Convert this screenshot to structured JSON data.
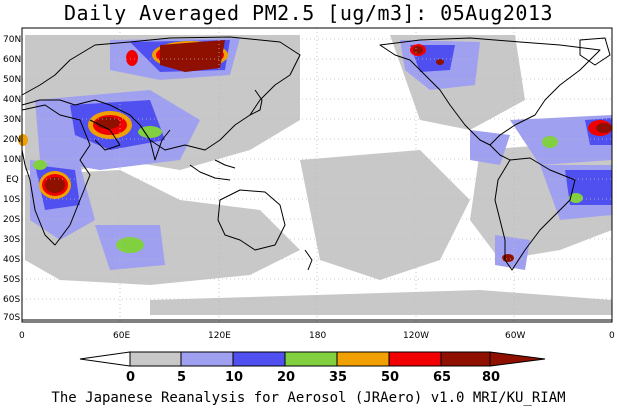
{
  "title": "Daily Averaged PM2.5 [ug/m3]: 05Aug2013",
  "footer": "The Japanese Reanalysis for Aerosol (JRAero) v1.0 MRI/KU_RIAM",
  "lat_labels": [
    "70N",
    "60N",
    "50N",
    "40N",
    "30N",
    "20N",
    "10N",
    "EQ",
    "10S",
    "20S",
    "30S",
    "40S",
    "50S",
    "60S",
    "70S"
  ],
  "lon_labels": [
    "0",
    "60E",
    "120E",
    "180",
    "120W",
    "60W",
    "0"
  ],
  "colorbar": {
    "levels": [
      "0",
      "5",
      "10",
      "20",
      "35",
      "50",
      "65",
      "80"
    ],
    "colors": [
      "#ffffff",
      "#c8c8c8",
      "#a0a0f0",
      "#5050f0",
      "#80d040",
      "#f0a000",
      "#f00000",
      "#901000"
    ]
  },
  "map_colors": {
    "grid": "#bbbbbb",
    "coast": "#000000"
  }
}
